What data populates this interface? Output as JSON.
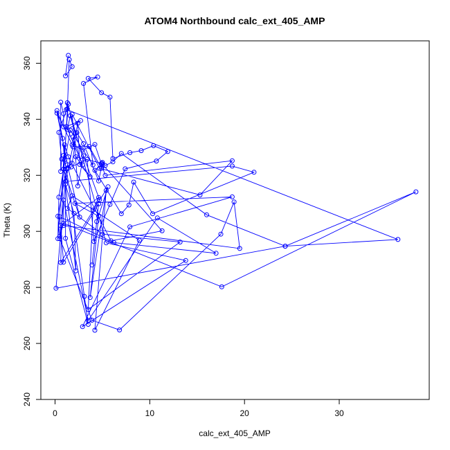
{
  "chart_data": {
    "type": "line",
    "title": "ATOM4 Northbound calc_ext_405_AMP",
    "xlabel": "calc_ext_405_AMP",
    "ylabel": "Theta (K)",
    "xlim": [
      -1.5,
      39.5
    ],
    "ylim": [
      240,
      368
    ],
    "xticks": [
      0,
      10,
      20,
      30
    ],
    "yticks": [
      240,
      260,
      280,
      300,
      320,
      340,
      360
    ],
    "series_color": "#0000ff",
    "marker": "open-circle",
    "connected": true,
    "grid": false,
    "series": [
      {
        "x": [
          1.4,
          1.1,
          1.8,
          1.5,
          1.3,
          1.0,
          0.8,
          0.2,
          0.9,
          0.9,
          0.6,
          0.6,
          0.7,
          0.4,
          1.4,
          0.3,
          0.4,
          1.6,
          4.0,
          3.0,
          4.5,
          3.5,
          4.9,
          5.8,
          6.1,
          7.9,
          9.1,
          10.4,
          11.9,
          10.7,
          7.4,
          5.8,
          4.1,
          3.4,
          1.7,
          1.4,
          0.2,
          1.8,
          2.9,
          4.2,
          5.3,
          18.7,
          15.3,
          4.7,
          1.8,
          2.4,
          3.0,
          4.7,
          2.1,
          1.6,
          1.3,
          2.7,
          1.2,
          2.9,
          1.9,
          1.9,
          3.6,
          4.9,
          5.0,
          4.2,
          7.0,
          7.8,
          8.3,
          10.3,
          21.0,
          18.7,
          1.1,
          2.4,
          2.6,
          3.7,
          2.2,
          4.9,
          11.3,
          5.9,
          1.4,
          1.0,
          0.9,
          1.8,
          2.3,
          3.0,
          4.6,
          5.0,
          5.3,
          6.1,
          7.0,
          16.0,
          24.3,
          36.2,
          1.2,
          1.3,
          5.4,
          13.8,
          2.9,
          7.9,
          18.7,
          2.1,
          4.6,
          3.7,
          5.4,
          4.2,
          8.9,
          1.8,
          1.3,
          5.0,
          13.2,
          3.5,
          4.0,
          4.6,
          0.6,
          0.5,
          3.9,
          6.8,
          17.5,
          18.9,
          19.5,
          0.9,
          0.9,
          3.5,
          10.8,
          17.0,
          6.2,
          0.5,
          0.9,
          4.6,
          3.9,
          4.4,
          5.6,
          0.6,
          0.9,
          1.2,
          3.1,
          3.5,
          1.1,
          1.1,
          2.0,
          2.2,
          0.9,
          2.6,
          1.3,
          0.3,
          0.5,
          0.9,
          17.6,
          38.1,
          24.3,
          0.1,
          1.2
        ],
        "y": [
          362.8,
          355.5,
          358.8,
          361.3,
          343.7,
          325.5,
          333.2,
          343.1,
          337.3,
          342.0,
          346.1,
          321.4,
          325.8,
          335.3,
          345.4,
          297.4,
          312.2,
          336.1,
          323.7,
          352.8,
          355.1,
          354.6,
          349.5,
          347.9,
          326.0,
          328.1,
          328.8,
          330.6,
          328.5,
          325.1,
          322.3,
          309.6,
          296.4,
          325.7,
          323.0,
          322.6,
          342.2,
          330.9,
          329.0,
          331.0,
          320.0,
          325.2,
          313.0,
          322.5,
          341.8,
          316.2,
          327.0,
          311.3,
          335.2,
          341.3,
          336.3,
          339.5,
          337.4,
          323.7,
          333.7,
          330.2,
          330.3,
          322.5,
          324.1,
          321.8,
          306.3,
          309.4,
          317.6,
          306.3,
          321.1,
          323.3,
          317.8,
          338.6,
          323.9,
          319.5,
          326.6,
          324.3,
          300.2,
          296.6,
          326.6,
          330.9,
          322.2,
          324.3,
          335.2,
          331.3,
          318.0,
          324.6,
          323.5,
          324.8,
          327.8,
          305.9,
          294.7,
          297.1,
          343.5,
          345.9,
          295.9,
          289.6,
          266.0,
          301.6,
          312.3,
          310.0,
          305.4,
          276.4,
          314.6,
          264.7,
          296.8,
          312.7,
          308.2,
          299.0,
          296.2,
          272.1,
          307.6,
          312.1,
          302.1,
          297.4,
          268.3,
          264.8,
          299.0,
          310.5,
          293.9,
          302.1,
          311.2,
          268.2,
          304.8,
          292.2,
          296.0,
          305.2,
          289.0,
          309.8,
          288.0,
          303.5,
          315.9,
          288.9,
          327.1,
          322.3,
          276.8,
          266.8,
          297.5,
          316.8,
          306.4,
          285.9,
          322.2,
          305.1,
          323.8,
          305.4,
          298.2,
          302.9,
          280.2,
          314.1,
          294.7,
          279.7,
          322.3
        ]
      }
    ]
  }
}
